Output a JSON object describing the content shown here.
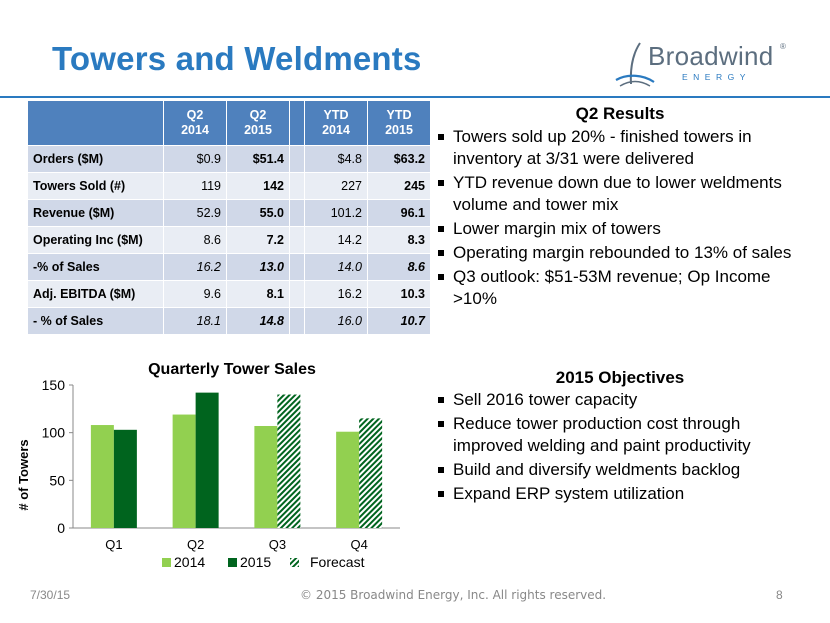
{
  "slide": {
    "title": "Towers and Weldments",
    "logo": {
      "word": "Broadwind",
      "registered": "®",
      "sub": "ENERGY"
    },
    "footer": {
      "date": "7/30/15",
      "copyright": "© 2015 Broadwind Energy, Inc. All rights reserved.",
      "page": "8"
    }
  },
  "table": {
    "headers": [
      {
        "line1": "Q2",
        "line2": "2014"
      },
      {
        "line1": "Q2",
        "line2": "2015"
      },
      {
        "line1": "YTD",
        "line2": "2014"
      },
      {
        "line1": "YTD",
        "line2": "2015"
      }
    ],
    "rows": [
      {
        "label": "Orders ($M)",
        "values": [
          "$0.9",
          "$51.4",
          "$4.8",
          "$63.2"
        ],
        "italic": false
      },
      {
        "label": "Towers Sold (#)",
        "values": [
          "119",
          "142",
          "227",
          "245"
        ],
        "italic": false
      },
      {
        "label": "Revenue ($M)",
        "values": [
          "52.9",
          "55.0",
          "101.2",
          "96.1"
        ],
        "italic": false
      },
      {
        "label": "Operating Inc ($M)",
        "values": [
          "8.6",
          "7.2",
          "14.2",
          "8.3"
        ],
        "italic": false
      },
      {
        "label": " -% of Sales",
        "values": [
          "16.2",
          "13.0",
          "14.0",
          "8.6"
        ],
        "italic": true
      },
      {
        "label": "Adj. EBITDA ($M)",
        "values": [
          "9.6",
          "8.1",
          "16.2",
          "10.3"
        ],
        "italic": false
      },
      {
        "label": " - % of Sales",
        "values": [
          "18.1",
          "14.8",
          "16.0",
          "10.7"
        ],
        "italic": true
      }
    ]
  },
  "q2_results": {
    "heading": "Q2 Results",
    "bullets": [
      "Towers sold up 20% - finished towers in inventory at 3/31 were delivered",
      "YTD revenue down due to lower weldments volume and tower mix",
      "Lower margin mix of towers",
      "Operating margin rebounded to 13% of sales",
      "Q3 outlook: $51-53M revenue; Op Income >10%"
    ]
  },
  "objectives": {
    "heading": "2015 Objectives",
    "bullets": [
      "Sell 2016 tower capacity",
      "Reduce tower production cost through improved welding and paint productivity",
      "Build and diversify weldments backlog",
      "Expand ERP system utilization"
    ]
  },
  "chart_data": {
    "type": "bar",
    "title": "Quarterly Tower Sales",
    "xlabel": "",
    "ylabel": "# of Towers",
    "categories": [
      "Q1",
      "Q2",
      "Q3",
      "Q4"
    ],
    "ylim": [
      0,
      150
    ],
    "yticks": [
      0,
      50,
      100,
      150
    ],
    "grid": false,
    "legend_position": "bottom",
    "series": [
      {
        "name": "2014",
        "values": [
          108,
          119,
          107,
          101
        ],
        "color": "#92d050",
        "pattern": "solid"
      },
      {
        "name": "2015",
        "values": [
          103,
          142,
          null,
          null
        ],
        "color": "#00641e",
        "pattern": "solid"
      },
      {
        "name": "Forecast",
        "values": [
          null,
          null,
          140,
          115
        ],
        "color": "#00641e",
        "pattern": "hatched"
      }
    ]
  },
  "colors": {
    "title": "#2a7ac0",
    "table_header": "#4f81bd",
    "row_odd": "#d0d8e8",
    "row_even": "#e9edf4"
  }
}
